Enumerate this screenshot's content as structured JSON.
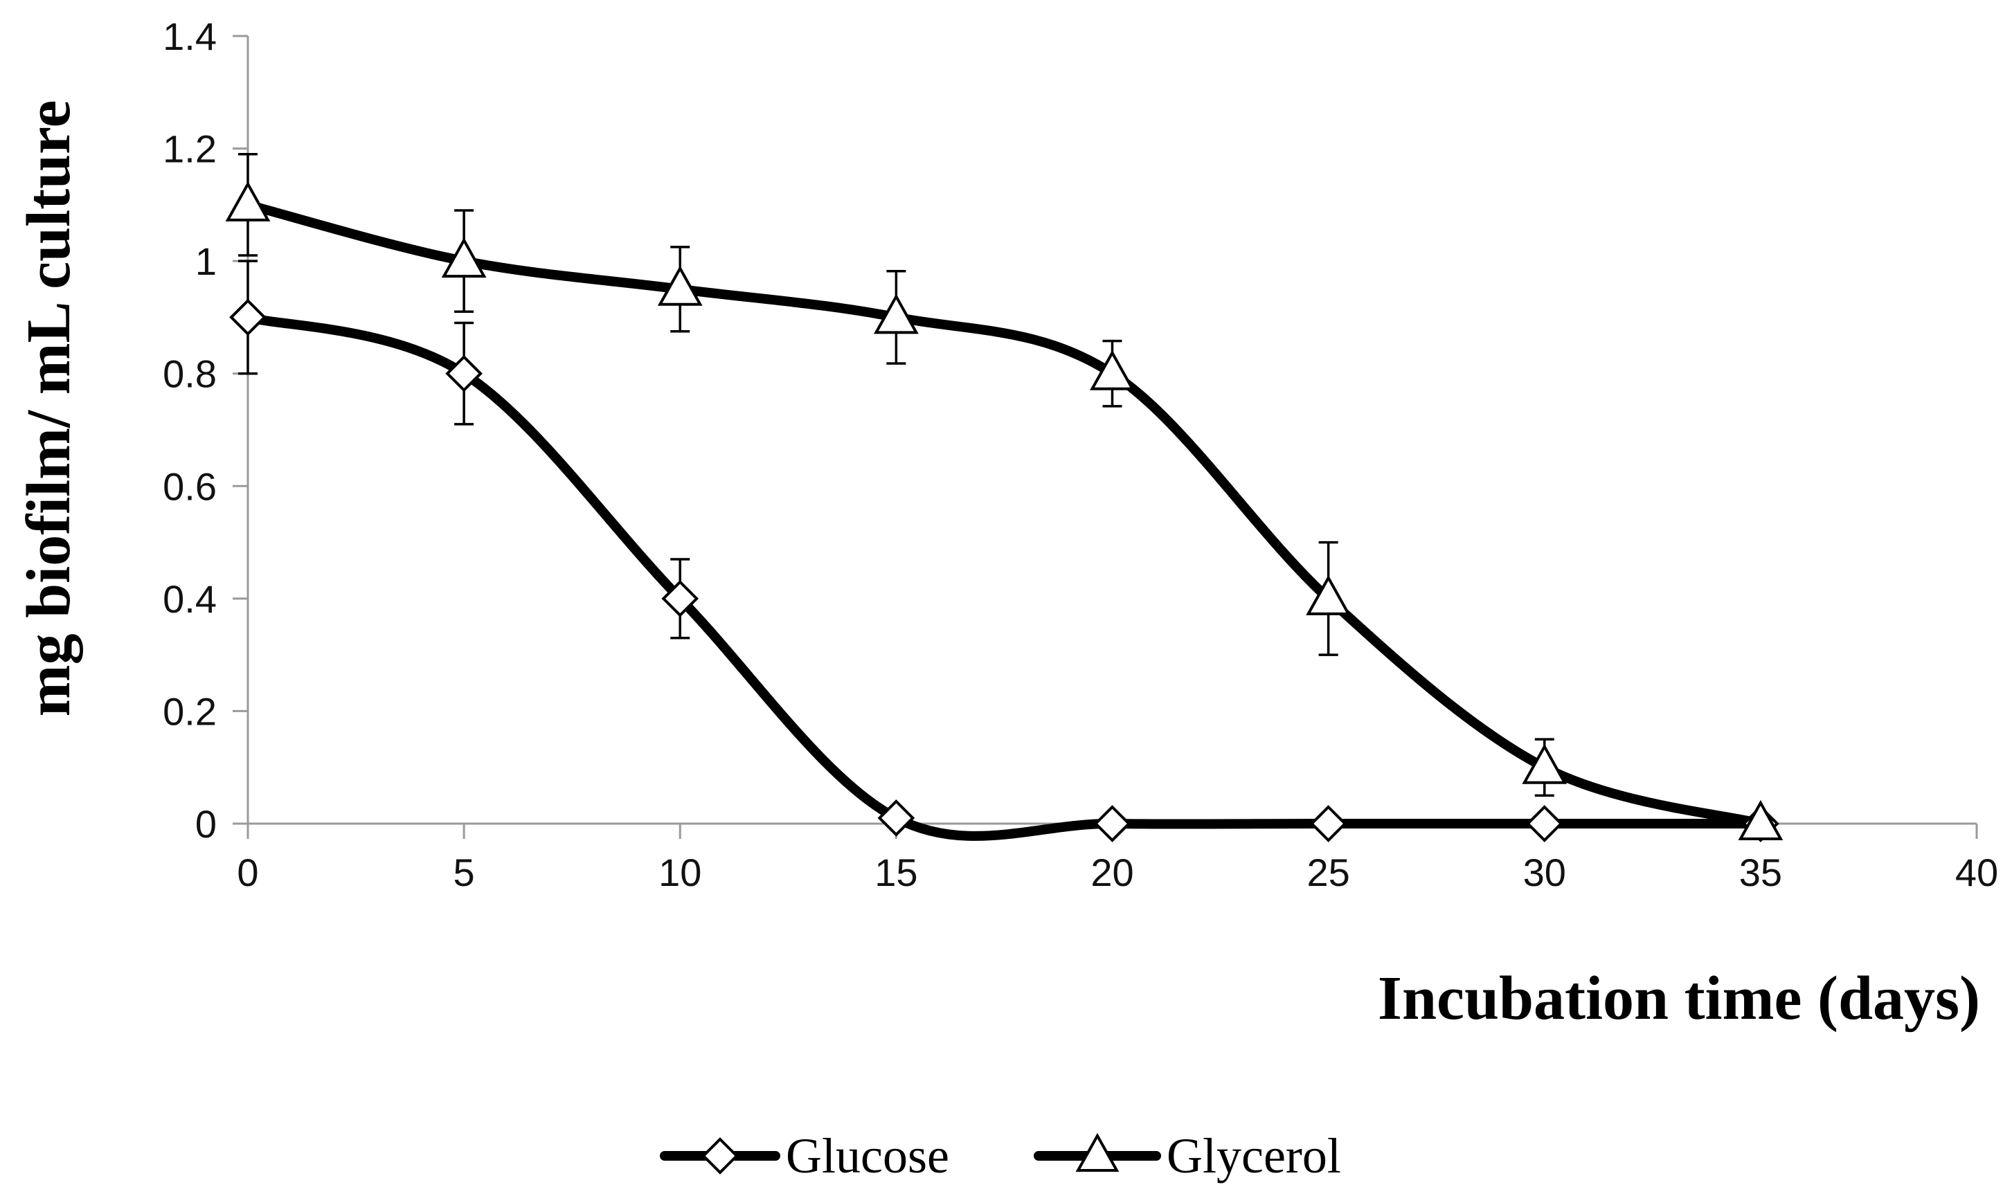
{
  "chart_data": {
    "type": "line",
    "title": "",
    "xlabel": "Incubation time (days)",
    "ylabel": "mg biofilm/ mL culture",
    "xlim": [
      0,
      40
    ],
    "ylim": [
      0,
      1.4
    ],
    "xticks": [
      0,
      5,
      10,
      15,
      20,
      25,
      30,
      35,
      40
    ],
    "yticks": [
      0,
      0.2,
      0.4,
      0.6,
      0.8,
      1,
      1.2,
      1.4
    ],
    "ytick_labels": [
      "0",
      "0.2",
      "0.4",
      "0.6",
      "0.8",
      "1",
      "1.2",
      "1.4"
    ],
    "legend_position": "bottom",
    "grid": false,
    "series": [
      {
        "name": "Glucose",
        "marker": "diamond",
        "x": [
          0,
          5,
          10,
          15,
          20,
          25,
          30,
          35
        ],
        "values": [
          0.9,
          0.8,
          0.4,
          0.01,
          0,
          0,
          0,
          0
        ],
        "errors": [
          0.1,
          0.09,
          0.07,
          0,
          0,
          0,
          0,
          0
        ]
      },
      {
        "name": "Glycerol",
        "marker": "triangle",
        "x": [
          0,
          5,
          10,
          15,
          20,
          25,
          30,
          35
        ],
        "values": [
          1.1,
          1.0,
          0.95,
          0.9,
          0.8,
          0.4,
          0.1,
          0
        ],
        "errors": [
          0.09,
          0.09,
          0.075,
          0.082,
          0.058,
          0.1,
          0.05,
          0
        ]
      }
    ]
  }
}
